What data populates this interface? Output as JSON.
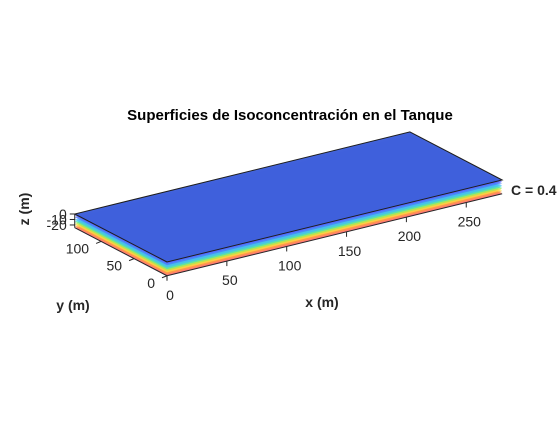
{
  "chart_data": {
    "type": "surface3d",
    "title": "Superficies de Isoconcentración en el Tanque",
    "xlabel": "x (m)",
    "ylabel": "y (m)",
    "zlabel": "z (m)",
    "xlim": [
      0,
      280
    ],
    "ylim": [
      0,
      140
    ],
    "zlim": [
      -25,
      0
    ],
    "x_ticks": [
      0,
      50,
      100,
      150,
      200,
      250
    ],
    "y_ticks": [
      0,
      50,
      100
    ],
    "z_ticks": [
      0,
      -10,
      -20
    ],
    "surfaces": [
      {
        "z": -25,
        "color": "#ff4b4b"
      },
      {
        "z": -22,
        "color": "#ff9f40"
      },
      {
        "z": -19,
        "color": "#ffe040"
      },
      {
        "z": -16,
        "color": "#9cec55"
      },
      {
        "z": -13,
        "color": "#40e0c0"
      },
      {
        "z": -10,
        "color": "#40b8ff"
      },
      {
        "z": -6,
        "color": "#4a78ff"
      },
      {
        "z": -3,
        "color": "#5a5cff"
      },
      {
        "z": 0,
        "color": "#7b6bff"
      }
    ],
    "top_face_color": "#3a5fd8",
    "annotation": "C = 0.4"
  }
}
